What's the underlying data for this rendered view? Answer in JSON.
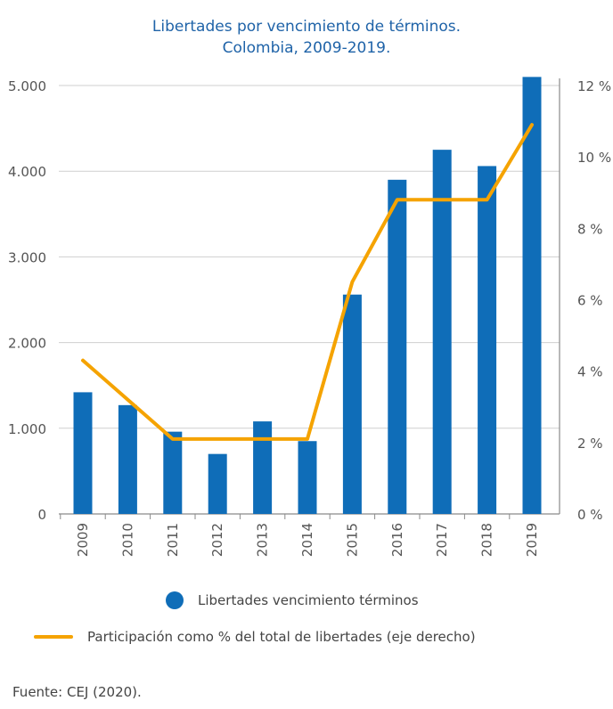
{
  "title_line1": "Libertades por vencimiento de términos.",
  "title_line2": "Colombia, 2009-2019.",
  "source": "Fuente: CEJ (2020).",
  "colors": {
    "bar": "#0f6db8",
    "line": "#f5a300",
    "title": "#1f63a8",
    "grid": "#cfcfcf",
    "text": "#555555"
  },
  "chart_data": {
    "type": "bar",
    "categories": [
      "2009",
      "2010",
      "2011",
      "2012",
      "2013",
      "2014",
      "2015",
      "2016",
      "2017",
      "2018",
      "2019"
    ],
    "series": [
      {
        "name": "Libertades vencimiento términos",
        "type": "bar",
        "axis": "left",
        "values": [
          1420,
          1270,
          960,
          700,
          1080,
          850,
          2560,
          3900,
          4250,
          4060,
          5100
        ]
      },
      {
        "name": "Participación como % del total de libertades  (eje derecho)",
        "type": "line",
        "axis": "right",
        "values": [
          4.3,
          3.2,
          2.1,
          2.1,
          2.1,
          2.1,
          6.5,
          8.8,
          8.8,
          8.8,
          10.9
        ]
      }
    ],
    "y_left": {
      "ylim": [
        0,
        5000
      ],
      "ticks": [
        0,
        1000,
        2000,
        3000,
        4000,
        5000
      ],
      "tick_labels": [
        "0",
        "1.000",
        "2.000",
        "3.000",
        "4.000",
        "5.000"
      ]
    },
    "y_right": {
      "ylim": [
        0,
        12
      ],
      "ticks": [
        0,
        2,
        4,
        6,
        8,
        10,
        12
      ],
      "tick_labels": [
        "0 %",
        "2 %",
        "4 %",
        "6 %",
        "8 %",
        "10 %",
        "12 %"
      ]
    },
    "grid": true,
    "legend_position": "bottom"
  }
}
